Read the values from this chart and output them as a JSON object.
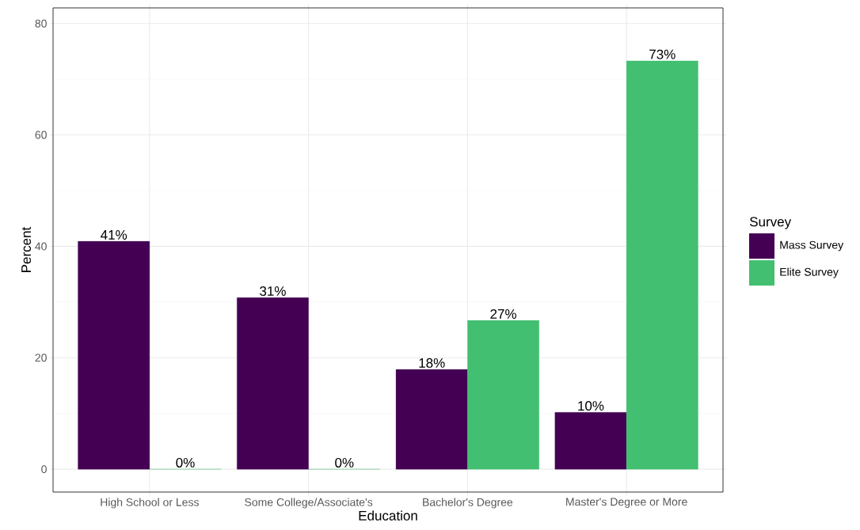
{
  "chart_data": {
    "type": "bar",
    "xlabel": "Education",
    "ylabel": "Percent",
    "legend_title": "Survey",
    "categories": [
      "High School or Less",
      "Some College/Associate's",
      "Bachelor's Degree",
      "Master's Degree or More"
    ],
    "series": [
      {
        "name": "Mass Survey",
        "color": "#440154",
        "values": [
          40.9,
          30.8,
          17.9,
          10.2
        ],
        "value_labels": [
          "41%",
          "31%",
          "18%",
          "10%"
        ]
      },
      {
        "name": "Elite Survey",
        "color": "#43bf71",
        "values": [
          0,
          0,
          26.7,
          73.3
        ],
        "value_labels": [
          "0%",
          "0%",
          "27%",
          "73%"
        ]
      }
    ],
    "ylim": [
      -4.1,
      82.8
    ],
    "yticks": [
      0,
      20,
      40,
      60,
      80
    ],
    "grid": true,
    "legend": "right"
  }
}
